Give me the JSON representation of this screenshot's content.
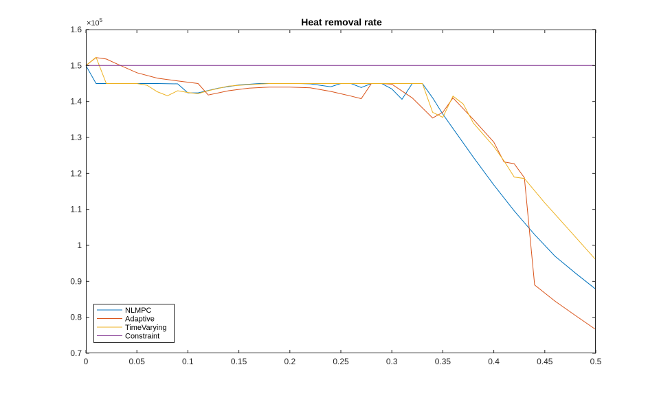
{
  "chart_data": {
    "type": "line",
    "title": "Heat removal rate",
    "xlabel": "",
    "ylabel": "",
    "y_exponent_base": "×10",
    "y_exponent_power": "5",
    "xlim": [
      0,
      0.5
    ],
    "ylim": [
      0.7,
      1.6
    ],
    "x_ticks": [
      0,
      0.05,
      0.1,
      0.15,
      0.2,
      0.25,
      0.3,
      0.35,
      0.4,
      0.45,
      0.5
    ],
    "x_tick_labels": [
      "0",
      "0.05",
      "0.1",
      "0.15",
      "0.2",
      "0.25",
      "0.3",
      "0.35",
      "0.4",
      "0.45",
      "0.5"
    ],
    "y_ticks": [
      0.7,
      0.8,
      0.9,
      1.0,
      1.1,
      1.2,
      1.3,
      1.4,
      1.5,
      1.6
    ],
    "y_tick_labels": [
      "0.7",
      "0.8",
      "0.9",
      "1",
      "1.1",
      "1.2",
      "1.3",
      "1.4",
      "1.5",
      "1.6"
    ],
    "grid": false,
    "legend_position": "bottom-left",
    "series": [
      {
        "name": "NLMPC",
        "color": "#0072BD",
        "x": [
          0,
          0.01,
          0.02,
          0.03,
          0.05,
          0.07,
          0.09,
          0.1,
          0.11,
          0.13,
          0.15,
          0.17,
          0.19,
          0.21,
          0.22,
          0.24,
          0.25,
          0.26,
          0.27,
          0.28,
          0.29,
          0.3,
          0.31,
          0.32,
          0.33,
          0.34,
          0.35,
          0.36,
          0.38,
          0.4,
          0.42,
          0.44,
          0.46,
          0.48,
          0.5
        ],
        "y": [
          1.5,
          1.45,
          1.45,
          1.45,
          1.45,
          1.45,
          1.449,
          1.424,
          1.424,
          1.437,
          1.446,
          1.45,
          1.45,
          1.45,
          1.449,
          1.441,
          1.45,
          1.45,
          1.439,
          1.45,
          1.45,
          1.435,
          1.406,
          1.45,
          1.45,
          1.41,
          1.365,
          1.325,
          1.245,
          1.168,
          1.096,
          1.03,
          0.97,
          0.923,
          0.878
        ]
      },
      {
        "name": "Adaptive",
        "color": "#D95319",
        "x": [
          0,
          0.01,
          0.02,
          0.03,
          0.05,
          0.07,
          0.09,
          0.11,
          0.12,
          0.14,
          0.16,
          0.18,
          0.2,
          0.22,
          0.24,
          0.26,
          0.27,
          0.28,
          0.29,
          0.3,
          0.32,
          0.34,
          0.35,
          0.36,
          0.38,
          0.4,
          0.41,
          0.42,
          0.43,
          0.44,
          0.46,
          0.48,
          0.5
        ],
        "y": [
          1.5,
          1.522,
          1.518,
          1.505,
          1.48,
          1.465,
          1.457,
          1.45,
          1.418,
          1.43,
          1.437,
          1.44,
          1.44,
          1.438,
          1.428,
          1.415,
          1.408,
          1.45,
          1.45,
          1.448,
          1.41,
          1.354,
          1.37,
          1.41,
          1.35,
          1.287,
          1.232,
          1.227,
          1.188,
          0.89,
          0.845,
          0.805,
          0.766
        ]
      },
      {
        "name": "TimeVarying",
        "color": "#EDB120",
        "x": [
          0,
          0.01,
          0.02,
          0.03,
          0.05,
          0.06,
          0.07,
          0.08,
          0.09,
          0.1,
          0.11,
          0.12,
          0.14,
          0.16,
          0.18,
          0.2,
          0.22,
          0.24,
          0.26,
          0.28,
          0.3,
          0.32,
          0.33,
          0.34,
          0.35,
          0.36,
          0.37,
          0.38,
          0.4,
          0.41,
          0.42,
          0.43,
          0.45,
          0.47,
          0.5
        ],
        "y": [
          1.5,
          1.523,
          1.45,
          1.45,
          1.45,
          1.445,
          1.427,
          1.416,
          1.43,
          1.425,
          1.422,
          1.43,
          1.443,
          1.447,
          1.45,
          1.45,
          1.45,
          1.45,
          1.45,
          1.45,
          1.45,
          1.45,
          1.45,
          1.37,
          1.356,
          1.415,
          1.393,
          1.34,
          1.275,
          1.235,
          1.19,
          1.186,
          1.118,
          1.055,
          0.96
        ]
      },
      {
        "name": "Constraint",
        "color": "#7E2F8E",
        "x": [
          0,
          0.5
        ],
        "y": [
          1.5,
          1.5
        ]
      }
    ]
  }
}
